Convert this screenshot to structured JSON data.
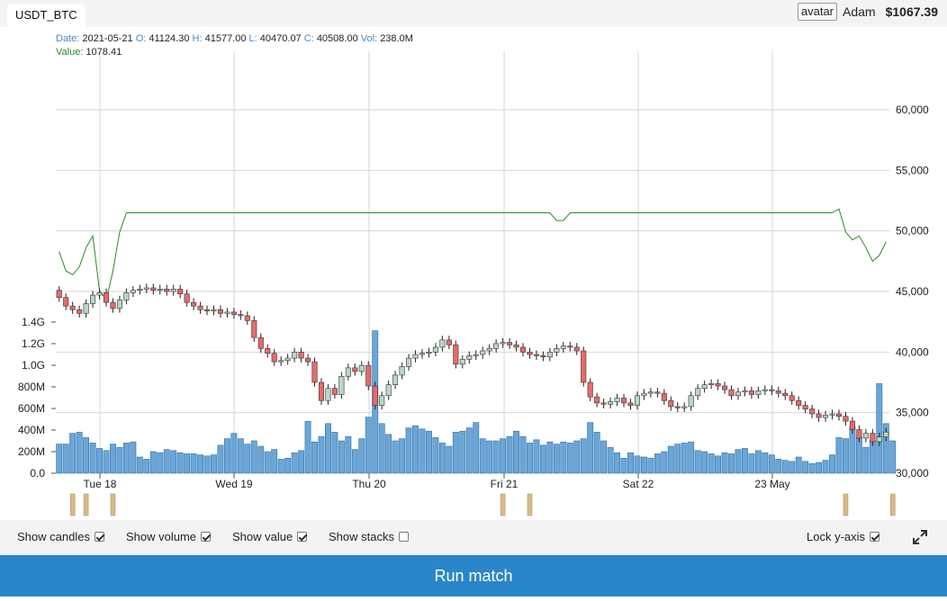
{
  "tab": {
    "label": "USDT_BTC"
  },
  "user": {
    "avatar_alt": "avatar",
    "name": "Adam",
    "balance": "$1067.39"
  },
  "info": {
    "date_label": "Date:",
    "date": "2021-05-21",
    "open_label": "O:",
    "open": "41124.30",
    "high_label": "H:",
    "high": "41577.00",
    "low_label": "L:",
    "low": "40470.07",
    "close_label": "C:",
    "close": "40508.00",
    "vol_label": "Vol:",
    "vol": "238.0M",
    "value_label": "Value:",
    "value": "1078.41"
  },
  "controls": {
    "show_candles": {
      "label": "Show candles",
      "checked": true
    },
    "show_volume": {
      "label": "Show volume",
      "checked": true
    },
    "show_value": {
      "label": "Show value",
      "checked": true
    },
    "show_stacks": {
      "label": "Show stacks",
      "checked": false
    },
    "lock_y_axis": {
      "label": "Lock y-axis",
      "checked": true
    }
  },
  "run_button": {
    "label": "Run match"
  },
  "colors": {
    "up": "#b9d7c3",
    "down": "#e86a6a",
    "volume": "#6aa6d6",
    "value_line": "#2a8a2a",
    "marker": "#d9b98a",
    "button": "#2a86c8"
  },
  "chart_data": {
    "type": "candlestick",
    "x_ticks": [
      "Tue 18",
      "Wed 19",
      "Thu 20",
      "Fri 21",
      "Sat 22",
      "23 May"
    ],
    "price_axis": {
      "ticks": [
        "30,000",
        "35,000",
        "40,000",
        "45,000",
        "50,000",
        "55,000",
        "60,000"
      ],
      "range": [
        30000,
        60000
      ]
    },
    "volume_axis": {
      "ticks": [
        "0.0",
        "200M",
        "400M",
        "600M",
        "800M",
        "1.0G",
        "1.2G",
        "1.4G"
      ],
      "range_M": [
        0,
        1400
      ]
    },
    "close_series": [
      44500,
      43800,
      43500,
      43200,
      44000,
      44700,
      44900,
      44100,
      43600,
      44300,
      44900,
      45100,
      45200,
      45300,
      45100,
      45200,
      45000,
      45200,
      44800,
      44100,
      43800,
      43500,
      43400,
      43500,
      43200,
      43300,
      43100,
      43000,
      42600,
      41200,
      40300,
      39900,
      39200,
      39300,
      39500,
      40000,
      39500,
      39200,
      37500,
      36000,
      37000,
      36500,
      38000,
      38700,
      38400,
      38900,
      37200,
      35600,
      36400,
      37300,
      38100,
      38800,
      39500,
      39800,
      39900,
      40000,
      40400,
      41000,
      40600,
      39000,
      39400,
      39700,
      39800,
      40100,
      40300,
      40700,
      40800,
      40600,
      40400,
      40000,
      39800,
      39700,
      39600,
      40000,
      40300,
      40500,
      40400,
      40100,
      37500,
      36300,
      35800,
      35700,
      35900,
      36200,
      35800,
      35600,
      36400,
      36600,
      36700,
      36600,
      36000,
      35500,
      35400,
      35500,
      36400,
      37000,
      37300,
      37400,
      37200,
      36900,
      36400,
      36700,
      36800,
      36500,
      36800,
      36900,
      36800,
      36600,
      36400,
      36000,
      35600,
      35300,
      34900,
      34600,
      34800,
      34900,
      34700,
      34300,
      33600,
      32900,
      33300,
      32600,
      33000,
      33400
    ],
    "value_series": [
      1060,
      1050,
      1048,
      1052,
      1062,
      1068,
      1040,
      1035,
      1050,
      1070,
      1080,
      1080,
      1080,
      1080,
      1080,
      1080,
      1080,
      1080,
      1080,
      1080,
      1080,
      1080,
      1080,
      1080,
      1080,
      1080,
      1080,
      1080,
      1080,
      1080,
      1080,
      1080,
      1080,
      1080,
      1080,
      1080,
      1080,
      1080,
      1080,
      1080,
      1080,
      1080,
      1080,
      1080,
      1080,
      1080,
      1080,
      1080,
      1080,
      1080,
      1080,
      1080,
      1080,
      1080,
      1080,
      1080,
      1080,
      1080,
      1080,
      1080,
      1080,
      1080,
      1080,
      1080,
      1080,
      1080,
      1080,
      1080,
      1080,
      1080,
      1080,
      1080,
      1080,
      1080,
      1076,
      1076,
      1080,
      1080,
      1080,
      1080,
      1080,
      1080,
      1080,
      1080,
      1080,
      1080,
      1080,
      1080,
      1080,
      1080,
      1080,
      1080,
      1080,
      1080,
      1080,
      1080,
      1080,
      1080,
      1080,
      1080,
      1080,
      1080,
      1080,
      1080,
      1080,
      1080,
      1080,
      1080,
      1080,
      1080,
      1080,
      1080,
      1080,
      1080,
      1080,
      1080,
      1082,
      1070,
      1066,
      1068,
      1062,
      1055,
      1058,
      1065
    ],
    "volume_M": [
      270,
      270,
      370,
      380,
      330,
      280,
      230,
      210,
      270,
      240,
      280,
      290,
      150,
      130,
      200,
      190,
      220,
      210,
      190,
      180,
      180,
      170,
      160,
      170,
      260,
      320,
      370,
      320,
      270,
      300,
      250,
      200,
      220,
      130,
      140,
      190,
      210,
      480,
      290,
      340,
      460,
      380,
      300,
      340,
      220,
      320,
      520,
      1320,
      460,
      360,
      300,
      320,
      420,
      440,
      410,
      390,
      330,
      280,
      250,
      380,
      390,
      420,
      470,
      320,
      300,
      300,
      320,
      340,
      390,
      340,
      280,
      310,
      260,
      290,
      270,
      290,
      280,
      300,
      320,
      470,
      380,
      300,
      240,
      190,
      140,
      190,
      160,
      150,
      140,
      180,
      200,
      250,
      270,
      280,
      290,
      210,
      200,
      180,
      160,
      190,
      180,
      220,
      230,
      180,
      210,
      190,
      170,
      130,
      120,
      110,
      150,
      110,
      90,
      100,
      120,
      170,
      330,
      320,
      430,
      330,
      240,
      300,
      830,
      460,
      300
    ],
    "markers_x_index": [
      2,
      4,
      8,
      66,
      70,
      117,
      124
    ]
  }
}
